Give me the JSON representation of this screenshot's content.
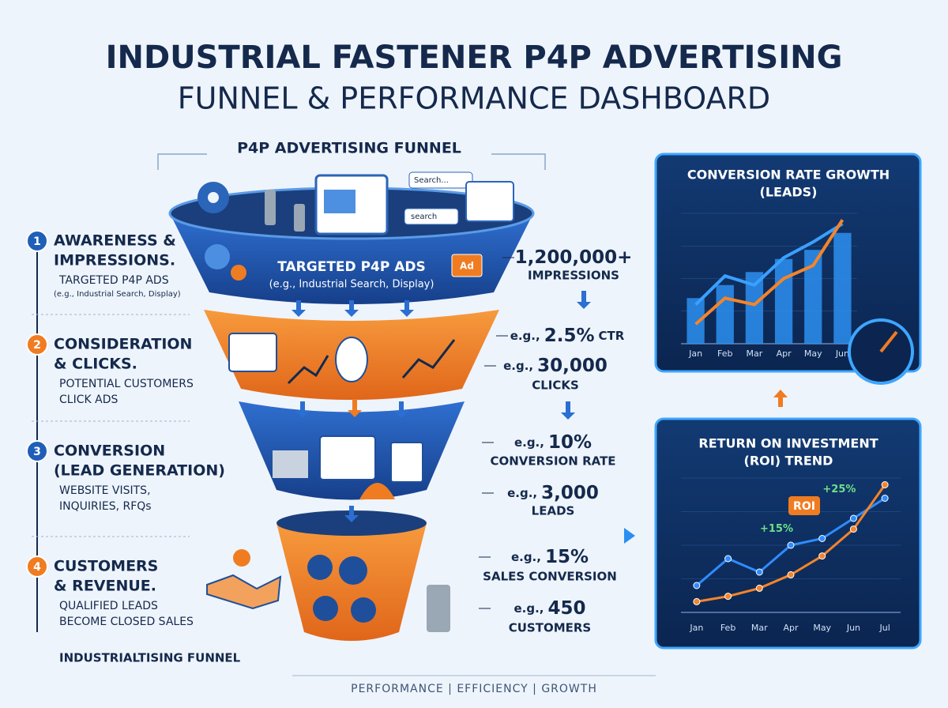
{
  "header": {
    "title": "INDUSTRIAL FASTENER P4P ADVERTISING",
    "subtitle": "FUNNEL & PERFORMANCE DASHBOARD"
  },
  "funnel": {
    "title": "P4P ADVERTISING FUNNEL",
    "top_label": "TARGETED P4P ADS",
    "top_sublabel": "(e.g., Industrial Search, Display)",
    "search_box_1": "Search...",
    "search_box_2": "search",
    "ad_tag": "Ad"
  },
  "stages": [
    {
      "number": "1",
      "title_lines": [
        "AWARENESS &",
        "IMPRESSIONS."
      ],
      "desc_lines": [
        "TARGETED P4P ADS"
      ],
      "note": "(e.g., Industrial Search, Display)"
    },
    {
      "number": "2",
      "title_lines": [
        "CONSIDERATION",
        "& CLICKS."
      ],
      "desc_lines": [
        "POTENTIAL CUSTOMERS",
        "CLICK ADS"
      ]
    },
    {
      "number": "3",
      "title_lines": [
        "CONVERSION",
        "(LEAD GENERATION)"
      ],
      "desc_lines": [
        "WEBSITE VISITS,",
        "INQUIRIES, RFQs"
      ]
    },
    {
      "number": "4",
      "title_lines": [
        "CUSTOMERS",
        "& REVENUE."
      ],
      "desc_lines": [
        "QUALIFIED LEADS",
        "BECOME CLOSED SALES"
      ]
    }
  ],
  "metrics": [
    {
      "value": "1,200,000+",
      "label": "IMPRESSIONS"
    },
    {
      "prefix": "e.g.,",
      "value": "2.5%",
      "label": "CTR"
    },
    {
      "prefix": "e.g.,",
      "value": "30,000",
      "label": "CLICKS"
    },
    {
      "prefix": "e.g.,",
      "value": "10%",
      "label": "CONVERSION RATE"
    },
    {
      "prefix": "e.g.,",
      "value": "3,000",
      "label": "LEADS"
    },
    {
      "prefix": "e.g.,",
      "value": "15%",
      "label": "SALES CONVERSION"
    },
    {
      "prefix": "e.g.,",
      "value": "450",
      "label": "CUSTOMERS"
    }
  ],
  "chart_data": [
    {
      "type": "bar",
      "title": "CONVERSION RATE GROWTH",
      "subtitle": "(LEADS)",
      "categories": [
        "Jan",
        "Feb",
        "Mar",
        "Apr",
        "May",
        "Jun"
      ],
      "values": [
        35,
        45,
        55,
        65,
        72,
        85
      ],
      "color": "#2d8ff0",
      "lines": [
        {
          "color": "#3aa0ff",
          "values": [
            30,
            52,
            45,
            66,
            78,
            92
          ]
        },
        {
          "color": "#f5842a",
          "values": [
            15,
            35,
            30,
            50,
            60,
            95
          ]
        }
      ],
      "ylim": [
        0,
        100
      ]
    },
    {
      "type": "line",
      "title": "RETURN ON INVESTMENT",
      "subtitle": "(ROI) TREND",
      "categories": [
        "Jan",
        "Feb",
        "Mar",
        "Apr",
        "May",
        "Jun",
        "Jul"
      ],
      "series": [
        {
          "color": "#2f8cff",
          "values": [
            20,
            40,
            30,
            50,
            55,
            70,
            85
          ]
        },
        {
          "color": "#f5842a",
          "values": [
            8,
            12,
            18,
            28,
            42,
            62,
            95
          ]
        }
      ],
      "annotations": [
        "+15%",
        "+25%"
      ],
      "badge": "ROI",
      "ylim": [
        0,
        100
      ]
    }
  ],
  "footer": {
    "tagline": "PERFORMANCE | EFFICIENCY | GROWTH",
    "corner_label": "INDUSTRIALTISING FUNNEL"
  }
}
